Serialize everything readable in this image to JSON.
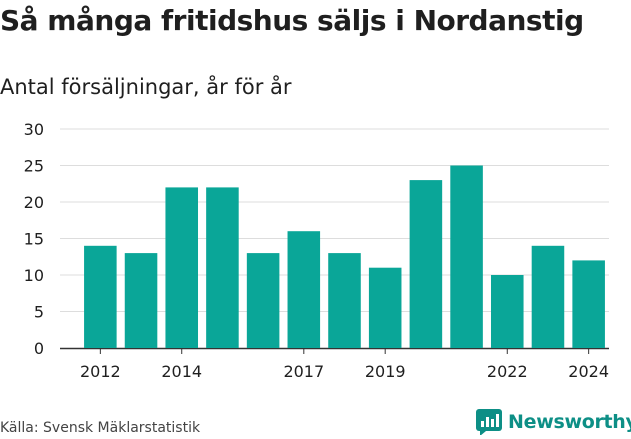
{
  "title": "Så många fritidshus säljs i Nordanstig",
  "subtitle": "Antal försäljningar, år för år",
  "source": "Källa: Svensk Mäklarstatistik",
  "brand": {
    "name": "Newsworthy",
    "icon": "newsworthy-logo-icon",
    "color": "#0d8f86"
  },
  "colors": {
    "bar": "#0aa698",
    "grid": "#dddddd",
    "axis": "#333333"
  },
  "chart_data": {
    "type": "bar",
    "title": "Så många fritidshus säljs i Nordanstig",
    "subtitle": "Antal försäljningar, år för år",
    "categories": [
      2012,
      2013,
      2014,
      2015,
      2016,
      2017,
      2018,
      2019,
      2020,
      2021,
      2022,
      2023,
      2024
    ],
    "values": [
      14,
      13,
      22,
      22,
      13,
      16,
      13,
      11,
      23,
      25,
      10,
      14,
      12
    ],
    "x_tick_labels": [
      "2012",
      "2014",
      "2017",
      "2019",
      "2022",
      "2024"
    ],
    "y_ticks": [
      0,
      5,
      10,
      15,
      20,
      25,
      30
    ],
    "ylim": [
      0,
      30
    ],
    "grid": true,
    "xlabel": "",
    "ylabel": ""
  }
}
